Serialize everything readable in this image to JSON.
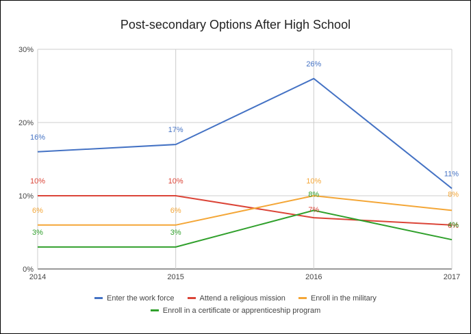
{
  "chart_data": {
    "type": "line",
    "title": "Post-secondary Options After High School",
    "xlabel": "",
    "ylabel": "",
    "x": [
      "2014",
      "2015",
      "2016",
      "2017"
    ],
    "ylim": [
      0,
      30
    ],
    "yticks": [
      "0%",
      "10%",
      "20%",
      "30%"
    ],
    "grid": true,
    "legend_position": "bottom",
    "series": [
      {
        "name": "Enter the work force",
        "color": "#4472c4",
        "values": [
          16,
          17,
          26,
          11
        ],
        "labels": [
          "16%",
          "17%",
          "26%",
          "11%"
        ]
      },
      {
        "name": "Attend a religious mission",
        "color": "#db4437",
        "values": [
          10,
          10,
          7,
          6
        ],
        "labels": [
          "10%",
          "10%",
          "7%",
          "6%"
        ]
      },
      {
        "name": "Enroll in the military",
        "color": "#f4a636",
        "values": [
          6,
          6,
          10,
          8
        ],
        "labels": [
          "6%",
          "6%",
          "10%",
          "8%"
        ]
      },
      {
        "name": "Enroll in a certificate or apprenticeship program",
        "color": "#30a02c",
        "values": [
          3,
          3,
          8,
          4
        ],
        "labels": [
          "3%",
          "3%",
          "8%",
          "4%"
        ]
      }
    ]
  }
}
